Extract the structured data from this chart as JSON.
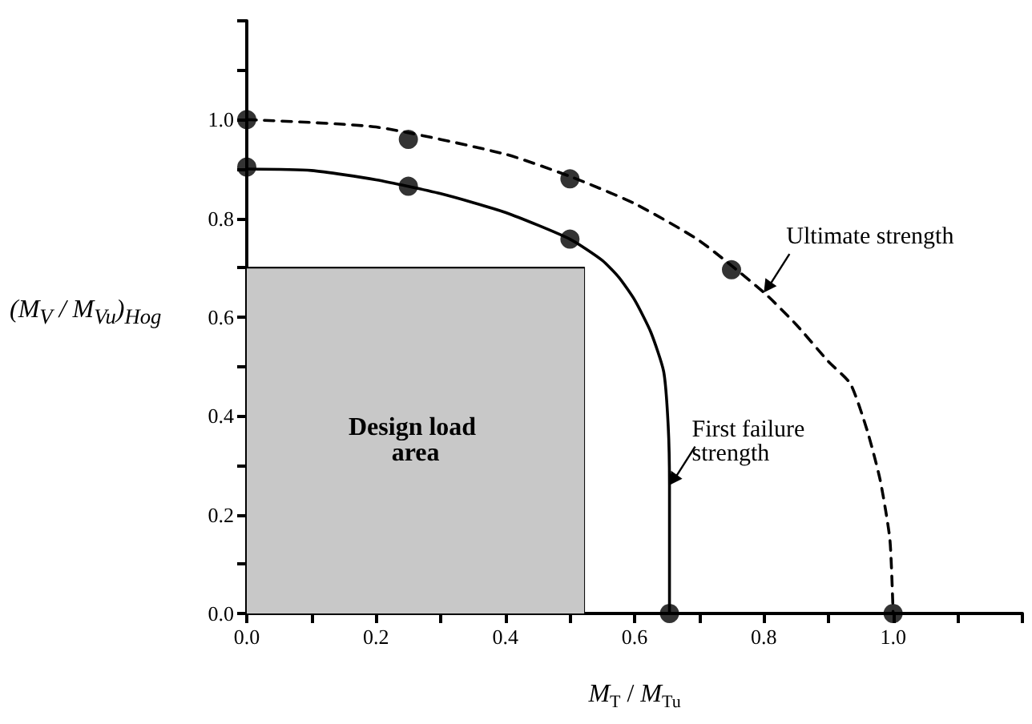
{
  "chart_data": {
    "type": "line",
    "xlabel": "M$_{T}$ / M$_{Tu}$",
    "ylabel": "(M$_{V}$ / M$_{Vu}$)$_{Hog}$",
    "xlim": [
      0,
      1.2
    ],
    "ylim": [
      0,
      1.2
    ],
    "xticks": [
      {
        "value": 0,
        "label": "0.0"
      },
      {
        "value": 0.1,
        "label": null
      },
      0.2,
      {
        "value": 0.3,
        "label": null
      },
      0.4,
      {
        "value": 0.5,
        "label": null
      },
      0.6,
      {
        "value": 0.7,
        "label": null
      },
      0.8,
      {
        "value": 0.9,
        "label": null
      },
      {
        "value": 1,
        "label": "1.0"
      },
      {
        "value": 1.1,
        "label": null
      },
      {
        "value": 1.2,
        "label": null
      }
    ],
    "yticks": [
      {
        "value": 0,
        "label": "0.0"
      },
      {
        "value": 0.1,
        "label": null
      },
      0.2,
      {
        "value": 0.3,
        "label": null
      },
      0.4,
      {
        "value": 0.5,
        "label": null
      },
      0.6,
      {
        "value": 0.7,
        "label": null
      },
      0.8,
      {
        "value": 0.9,
        "label": null
      },
      {
        "value": 1,
        "label": "1.0"
      },
      {
        "value": 1.1,
        "label": null
      },
      {
        "value": 1.2,
        "label": null
      }
    ],
    "grid": false,
    "legend": false,
    "series": [
      {
        "name": "Design load area",
        "type": "area",
        "color": "#c8c8c8",
        "x": [
          0,
          0.522
        ],
        "values": [
          0.7,
          0.7
        ],
        "marker": "none"
      },
      {
        "color": "#000000",
        "line_style": "dashed",
        "marker": "none",
        "x": [
          0,
          0.2,
          0.4,
          0.5,
          0.6,
          0.7,
          0.8,
          0.85,
          0.9,
          0.934,
          0.96,
          0.98,
          0.995,
          1.0
        ],
        "values": [
          1.0,
          0.985,
          0.93,
          0.885,
          0.83,
          0.755,
          0.65,
          0.585,
          0.51,
          0.465,
          0.37,
          0.27,
          0.15,
          0
        ]
      },
      {
        "color": "#000000",
        "line_style": "solid",
        "marker": "none",
        "x": [
          0,
          0.1,
          0.2,
          0.3,
          0.4,
          0.5,
          0.55,
          0.576,
          0.6,
          0.625,
          0.645,
          0.652,
          0.654,
          0.654
        ],
        "values": [
          0.9,
          0.897,
          0.878,
          0.85,
          0.812,
          0.758,
          0.715,
          0.68,
          0.635,
          0.57,
          0.49,
          0.38,
          0.26,
          0
        ]
      },
      {
        "type": "scatter",
        "color": "#000000",
        "marker": "circle",
        "x": [
          0,
          0.25,
          0.5,
          0.75,
          1.0,
          0,
          0.25,
          0.5,
          0.654
        ],
        "values": [
          1.0,
          0.96,
          0.88,
          0.696,
          0,
          0.904,
          0.865,
          0.758,
          0
        ]
      }
    ],
    "annotations": [
      {
        "text": "Ultimate strength",
        "x": 0.8,
        "y": 0.65
      },
      {
        "text": "First failure strength",
        "x": 0.654,
        "y": 0.26
      }
    ]
  }
}
